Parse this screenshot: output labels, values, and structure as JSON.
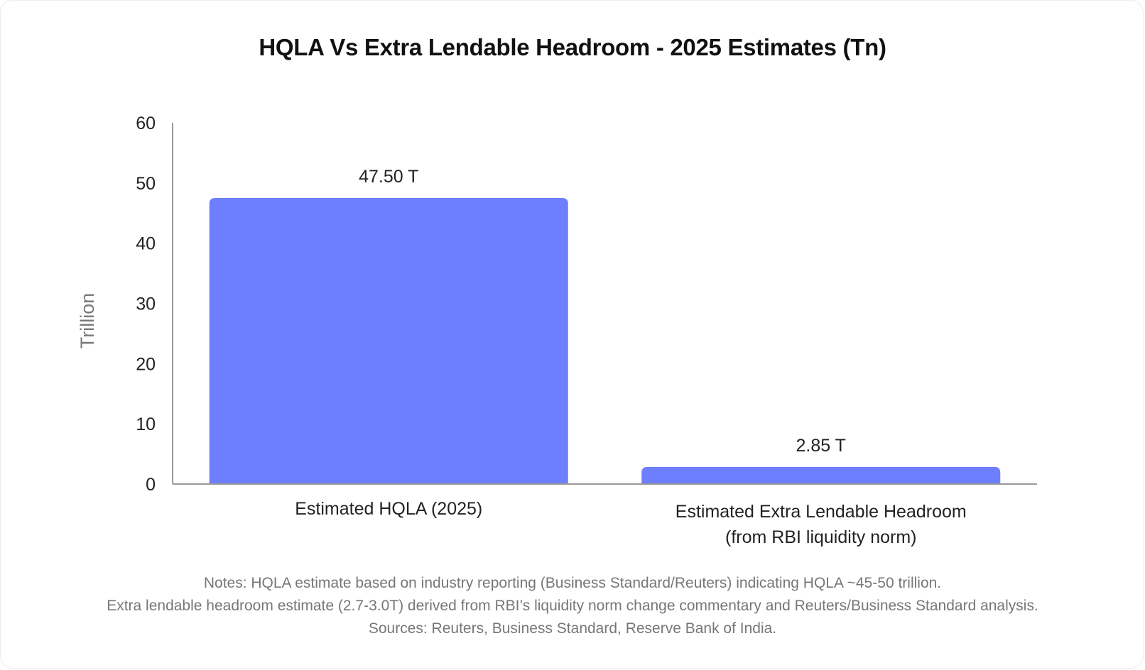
{
  "chart_data": {
    "type": "bar",
    "title": "HQLA Vs Extra Lendable Headroom -  2025 Estimates (Tn)",
    "xlabel": "",
    "ylabel": "Trillion",
    "ylim": [
      0,
      60
    ],
    "yticks": [
      0,
      10,
      20,
      30,
      40,
      50,
      60
    ],
    "grid": false,
    "categories": [
      [
        "Estimated HQLA (2025)"
      ],
      [
        "Estimated Extra Lendable Headroom",
        "(from RBI liquidity norm)"
      ]
    ],
    "values": [
      47.5,
      2.85
    ],
    "data_labels": [
      "47.50 T",
      "2.85 T"
    ],
    "bar_color": "#6e7ffe"
  },
  "notes": [
    "Notes: HQLA estimate based on industry reporting (Business Standard/Reuters) indicating HQLA ~45-50 trillion.",
    "Extra lendable headroom estimate (2.7-3.0T) derived from RBI’s liquidity norm change commentary and Reuters/Business Standard analysis.",
    "Sources: Reuters, Business Standard, Reserve Bank of India."
  ]
}
